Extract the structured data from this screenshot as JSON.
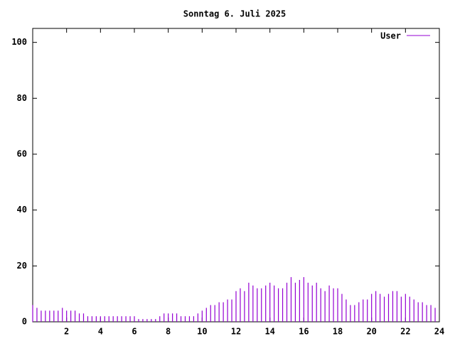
{
  "chart_data": {
    "type": "impulse",
    "title": "Sonntag 6. Juli 2025",
    "x": [
      0,
      0.25,
      0.5,
      0.75,
      1,
      1.25,
      1.5,
      1.75,
      2,
      2.25,
      2.5,
      2.75,
      3,
      3.25,
      3.5,
      3.75,
      4,
      4.25,
      4.5,
      4.75,
      5,
      5.25,
      5.5,
      5.75,
      6,
      6.25,
      6.5,
      6.75,
      7,
      7.25,
      7.5,
      7.75,
      8,
      8.25,
      8.5,
      8.75,
      9,
      9.25,
      9.5,
      9.75,
      10,
      10.25,
      10.5,
      10.75,
      11,
      11.25,
      11.5,
      11.75,
      12,
      12.25,
      12.5,
      12.75,
      13,
      13.25,
      13.5,
      13.75,
      14,
      14.25,
      14.5,
      14.75,
      15,
      15.25,
      15.5,
      15.75,
      16,
      16.25,
      16.5,
      16.75,
      17,
      17.25,
      17.5,
      17.75,
      18,
      18.25,
      18.5,
      18.75,
      19,
      19.25,
      19.5,
      19.75,
      20,
      20.25,
      20.5,
      20.75,
      21,
      21.25,
      21.5,
      21.75,
      22,
      22.25,
      22.5,
      22.75,
      23,
      23.25,
      23.5,
      23.75
    ],
    "series": [
      {
        "name": "User",
        "color": "#9400d3",
        "values": [
          6,
          5,
          4,
          4,
          4,
          4,
          4,
          5,
          4,
          4,
          4,
          3,
          3,
          2,
          2,
          2,
          2,
          2,
          2,
          2,
          2,
          2,
          2,
          2,
          2,
          1,
          1,
          1,
          1,
          1,
          2,
          3,
          3,
          3,
          3,
          2,
          2,
          2,
          2,
          3,
          4,
          5,
          6,
          6,
          7,
          7,
          8,
          8,
          11,
          12,
          11,
          14,
          13,
          12,
          12,
          13,
          14,
          13,
          12,
          12,
          14,
          16,
          14,
          15,
          16,
          14,
          13,
          14,
          12,
          11,
          13,
          12,
          12,
          10,
          8,
          6,
          6,
          7,
          8,
          8,
          10,
          11,
          10,
          9,
          10,
          11,
          11,
          9,
          10,
          9,
          8,
          7,
          7,
          6,
          6,
          5
        ]
      }
    ],
    "xlim": [
      0,
      24
    ],
    "xticks": [
      2,
      4,
      6,
      8,
      10,
      12,
      14,
      16,
      18,
      20,
      22,
      24
    ],
    "ylim": [
      0,
      105
    ],
    "yticks": [
      0,
      20,
      40,
      60,
      80,
      100
    ],
    "legend": "top-right"
  }
}
